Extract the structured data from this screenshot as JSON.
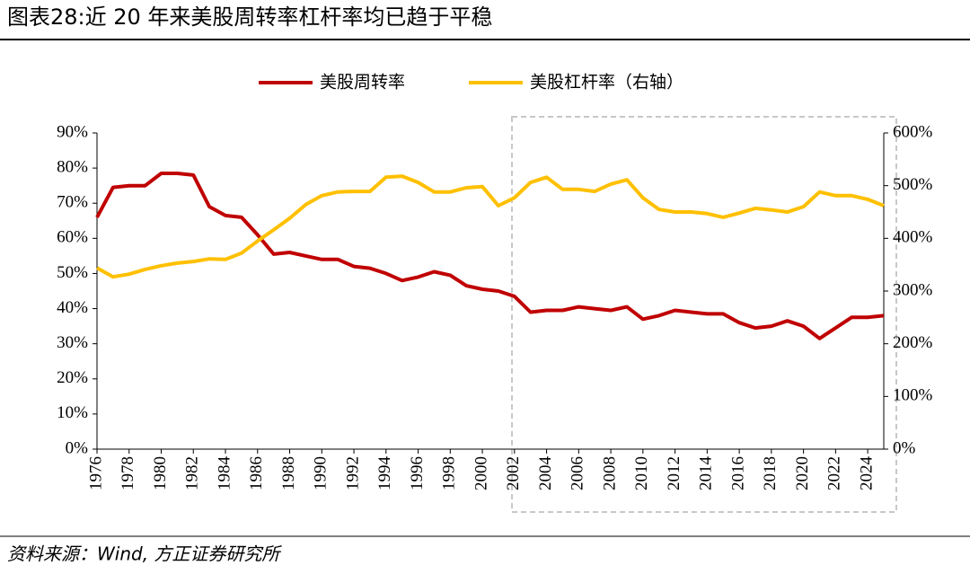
{
  "chart_data": {
    "type": "line",
    "title": "图表28:近 20 年来美股周转率杠杆率均已趋于平稳",
    "source": "资料来源：Wind, 方正证券研究所",
    "x": [
      1976,
      1977,
      1978,
      1979,
      1980,
      1981,
      1982,
      1983,
      1984,
      1985,
      1986,
      1987,
      1988,
      1989,
      1990,
      1991,
      1992,
      1993,
      1994,
      1995,
      1996,
      1997,
      1998,
      1999,
      2000,
      2001,
      2002,
      2003,
      2004,
      2005,
      2006,
      2007,
      2008,
      2009,
      2010,
      2011,
      2012,
      2013,
      2014,
      2015,
      2016,
      2017,
      2018,
      2019,
      2020,
      2021,
      2022,
      2023,
      2024,
      2025
    ],
    "series": [
      {
        "name": "美股周转率",
        "color": "#c00000",
        "axis": "y",
        "values": [
          66,
          74.5,
          75,
          75,
          78.5,
          78.5,
          78,
          69,
          66.5,
          66,
          61,
          55.5,
          56,
          55,
          54,
          54,
          52,
          51.5,
          50,
          48,
          49,
          50.5,
          49.5,
          46.5,
          45.5,
          45,
          43.5,
          39,
          39.5,
          39.5,
          40.5,
          40,
          39.5,
          40.5,
          37,
          38,
          39.5,
          39,
          38.5,
          38.5,
          36,
          34.5,
          35,
          36.5,
          35,
          31.5,
          34.5,
          37.5,
          37.5,
          38
        ]
      },
      {
        "name": "美股杠杆率（右轴）",
        "color": "#ffc000",
        "axis": "y2",
        "values": [
          344,
          327,
          332,
          341,
          348,
          353,
          356,
          361,
          360,
          372,
          395,
          416,
          438,
          464,
          481,
          488,
          489,
          489,
          516,
          518,
          506,
          488,
          488,
          496,
          498,
          462,
          477,
          506,
          516,
          493,
          493,
          489,
          503,
          511,
          477,
          455,
          450,
          450,
          447,
          440,
          448,
          457,
          454,
          450,
          460,
          488,
          481,
          481,
          474,
          462
        ]
      }
    ],
    "xlim": [
      1976,
      2025
    ],
    "xticks": [
      1976,
      1978,
      1980,
      1982,
      1984,
      1986,
      1988,
      1990,
      1992,
      1994,
      1996,
      1998,
      2000,
      2002,
      2004,
      2006,
      2008,
      2010,
      2012,
      2014,
      2016,
      2018,
      2020,
      2022,
      2024
    ],
    "ylim": [
      0,
      90
    ],
    "yticks": [
      {
        "value": 0,
        "label": "0%"
      },
      {
        "value": 10,
        "label": "10%"
      },
      {
        "value": 20,
        "label": "20%"
      },
      {
        "value": 30,
        "label": "30%"
      },
      {
        "value": 40,
        "label": "40%"
      },
      {
        "value": 50,
        "label": "50%"
      },
      {
        "value": 60,
        "label": "60%"
      },
      {
        "value": 70,
        "label": "70%"
      },
      {
        "value": 80,
        "label": "80%"
      },
      {
        "value": 90,
        "label": "90%"
      }
    ],
    "y2lim": [
      0,
      600
    ],
    "y2ticks": [
      {
        "value": 0,
        "label": "0%"
      },
      {
        "value": 100,
        "label": "100%"
      },
      {
        "value": 200,
        "label": "200%"
      },
      {
        "value": 300,
        "label": "300%"
      },
      {
        "value": 400,
        "label": "400%"
      },
      {
        "value": 500,
        "label": "500%"
      },
      {
        "value": 600,
        "label": "600%"
      }
    ],
    "legend": "top"
  }
}
